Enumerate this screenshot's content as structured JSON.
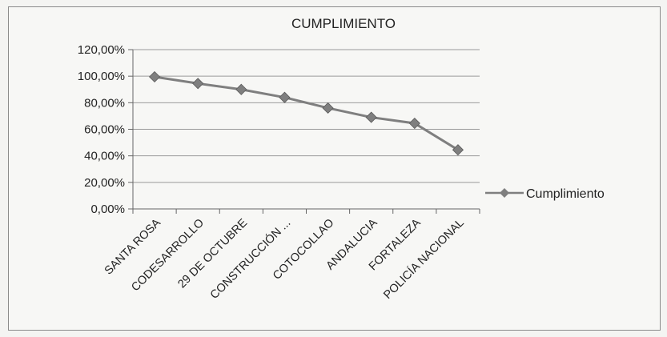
{
  "chart_data": {
    "type": "line",
    "title": "CUMPLIMIENTO",
    "categories": [
      "SANTA ROSA",
      "CODESARROLLO",
      "29 DE OCTUBRE",
      "CONSTRUCCIÓN ...",
      "COTOCOLLAO",
      "ANDALUCIA",
      "FORTALEZA",
      "POLICÍA NACIONAL"
    ],
    "series": [
      {
        "name": "Cumplimiento",
        "values": [
          99.5,
          94.5,
          90.0,
          84.0,
          76.0,
          69.0,
          64.5,
          44.5
        ],
        "color": "#7f7f7f",
        "marker": "diamond"
      }
    ],
    "yticks": [
      "0,00%",
      "20,00%",
      "40,00%",
      "60,00%",
      "80,00%",
      "100,00%",
      "120,00%"
    ],
    "ylim": [
      0,
      120
    ],
    "grid": true,
    "legend": "right"
  }
}
